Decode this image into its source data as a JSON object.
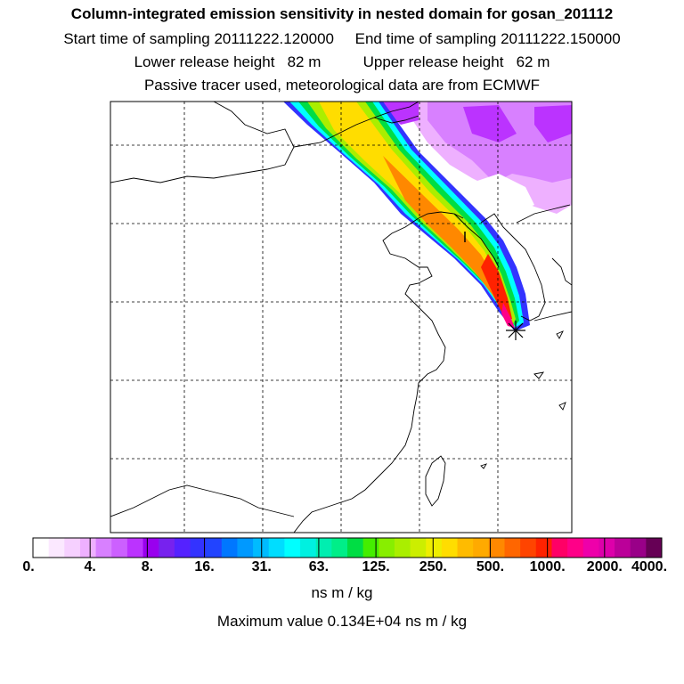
{
  "header": {
    "title": "Column-integrated emission sensitivity in nested domain for gosan_201112",
    "sampling": "Start time of sampling 20111222.120000     End time of sampling 20111222.150000",
    "release": "Lower release height   82 m          Upper release height   62 m",
    "info": "Passive tracer used, meteorological data are from ECMWF"
  },
  "colorbar": {
    "labels": [
      "0.",
      "4.",
      "8.",
      "16.",
      "31.",
      "63.",
      "125.",
      "250.",
      "500.",
      "1000.",
      "2000.",
      "4000."
    ],
    "colors": [
      "#ffffff",
      "#fbe8ff",
      "#f6d0ff",
      "#eeb0ff",
      "#d880ff",
      "#cc60ff",
      "#bb33ff",
      "#9900ee",
      "#7722ee",
      "#5522ff",
      "#3333ff",
      "#2244ff",
      "#0077ff",
      "#0099ff",
      "#00bbff",
      "#00ddff",
      "#00ffff",
      "#00f0e0",
      "#00eeb0",
      "#00ee88",
      "#00dd44",
      "#44ee00",
      "#88ee00",
      "#aaee00",
      "#ccee00",
      "#eeee00",
      "#ffdd00",
      "#ffbb00",
      "#ffaa00",
      "#ff8800",
      "#ff6600",
      "#ff4400",
      "#ff2200",
      "#ff0066",
      "#ff0088",
      "#ee00aa",
      "#dd00aa",
      "#bb0099",
      "#990088",
      "#660055"
    ],
    "units": "ns m / kg"
  },
  "summary": {
    "maximum": "Maximum value  0.134E+04 ns m / kg"
  },
  "map": {
    "receptor_marker": "asterisk-marker",
    "frame_color": "#000000"
  }
}
